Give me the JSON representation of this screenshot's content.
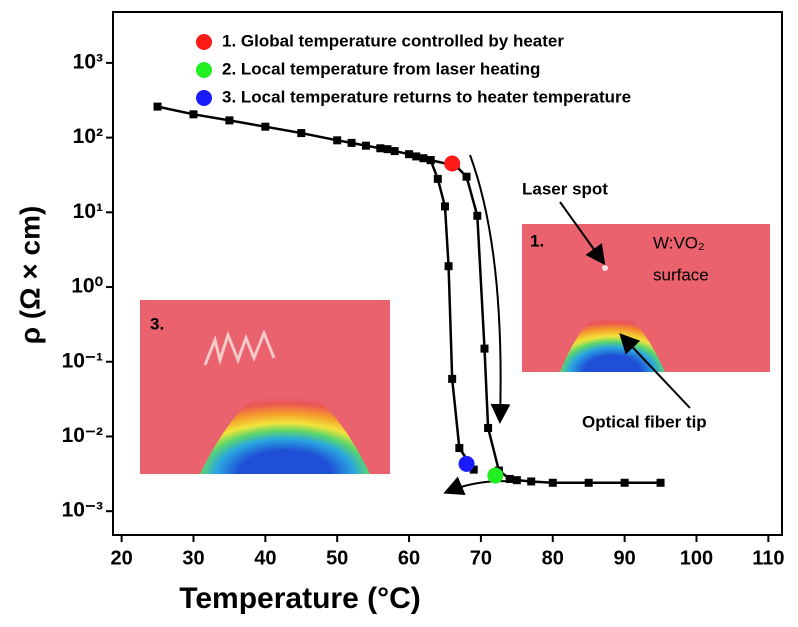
{
  "chart_data": {
    "type": "line",
    "log_y": true,
    "xlabel": "Temperature (°C)",
    "ylabel": "ρ (Ω × cm)",
    "xlim": [
      18.8,
      111.9
    ],
    "ylim": [
      0.00048,
      4800
    ],
    "xticks": [
      20,
      30,
      40,
      50,
      60,
      70,
      80,
      90,
      100,
      110
    ],
    "yticks": [
      {
        "value": 0.001,
        "label": "10⁻³"
      },
      {
        "value": 0.01,
        "label": "10⁻²"
      },
      {
        "value": 0.1,
        "label": "10⁻¹"
      },
      {
        "value": 1,
        "label": "10⁰"
      },
      {
        "value": 10,
        "label": "10¹"
      },
      {
        "value": 100,
        "label": "10²"
      },
      {
        "value": 1000,
        "label": "10³"
      }
    ],
    "series": [
      {
        "color": "#000000",
        "x": [
          25,
          30,
          35,
          40,
          45,
          50,
          52,
          54,
          56,
          57,
          58,
          60,
          61,
          62,
          63,
          64,
          65,
          65.5,
          66,
          67,
          69
        ],
        "values": [
          260,
          205,
          170,
          140,
          115,
          92,
          85,
          78,
          72,
          70,
          66,
          60,
          56,
          53,
          50,
          28,
          12,
          1.9,
          0.059,
          0.007,
          0.0036
        ]
      },
      {
        "color": "#000000",
        "x": [
          63,
          66.5,
          68,
          69.5,
          70.5,
          71,
          72.5,
          74,
          75,
          77,
          80,
          85,
          90,
          95
        ],
        "values": [
          50,
          42,
          30,
          9,
          0.15,
          0.013,
          0.0035,
          0.0027,
          0.0026,
          0.0025,
          0.0024,
          0.0024,
          0.0024,
          0.0024
        ]
      }
    ],
    "highlights": [
      {
        "label": "1. Global temperature controlled by heater",
        "color": "#ff1a1a",
        "x": 66,
        "y": 45
      },
      {
        "label": "2. Local temperature from laser heating",
        "color": "#22ee22",
        "x": 72,
        "y": 0.003
      },
      {
        "label": "3. Local temperature returns to heater temperature",
        "color": "#1a1aff",
        "x": 68,
        "y": 0.0043
      }
    ],
    "annotations": [
      "Laser spot",
      "Optical fiber tip",
      "1.",
      "W:VO₂",
      "surface",
      "3."
    ]
  }
}
